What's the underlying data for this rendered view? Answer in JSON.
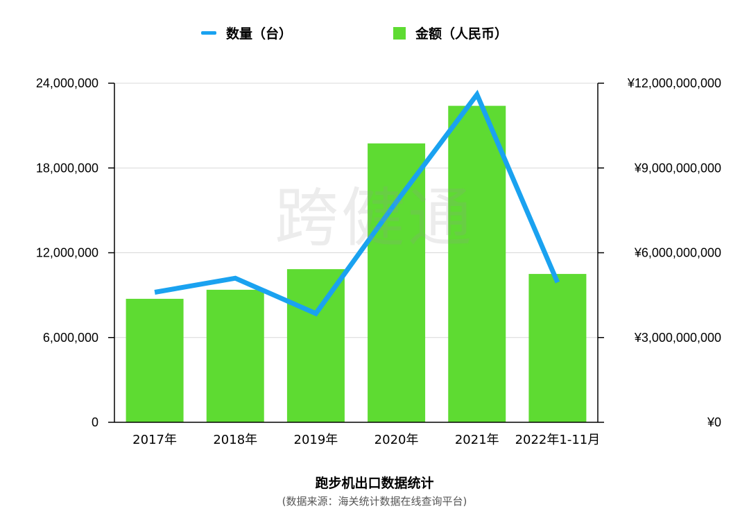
{
  "legend": {
    "line_label": "数量（台）",
    "bar_label": "金额（人民币）"
  },
  "watermark": "跨健通",
  "caption": {
    "title": "跑步机出口数据统计",
    "subtitle": "(数据来源：海关统计数据在线查询平台)"
  },
  "colors": {
    "bar": "#5EDB32",
    "line": "#1AA2F0",
    "grid": "#d8d8d8",
    "axis": "#000000"
  },
  "chart_data": {
    "type": "bar",
    "categories": [
      "2017年",
      "2018年",
      "2019年",
      "2020年",
      "2021年",
      "2022年1-11月"
    ],
    "series": [
      {
        "name": "金额（人民币）",
        "type": "bar",
        "axis": "right",
        "values": [
          4370000000,
          4690000000,
          5420000000,
          9870000000,
          11200000000,
          5250000000
        ]
      },
      {
        "name": "数量（台）",
        "type": "line",
        "axis": "left",
        "values": [
          9200000,
          10200000,
          7700000,
          15600000,
          23200000,
          9900000
        ]
      }
    ],
    "y_left": {
      "ylim": [
        0,
        24000000
      ],
      "ticks": [
        0,
        6000000,
        12000000,
        18000000,
        24000000
      ],
      "tick_labels": [
        "0",
        "6,000,000",
        "12,000,000",
        "18,000,000",
        "24,000,000"
      ]
    },
    "y_right": {
      "ylim": [
        0,
        12000000000
      ],
      "tick_labels": [
        "¥0",
        "¥3,000,000,000",
        "¥6,000,000,000",
        "¥9,000,000,000",
        "¥12,000,000,000"
      ]
    },
    "grid": true,
    "legend_position": "top-center"
  }
}
